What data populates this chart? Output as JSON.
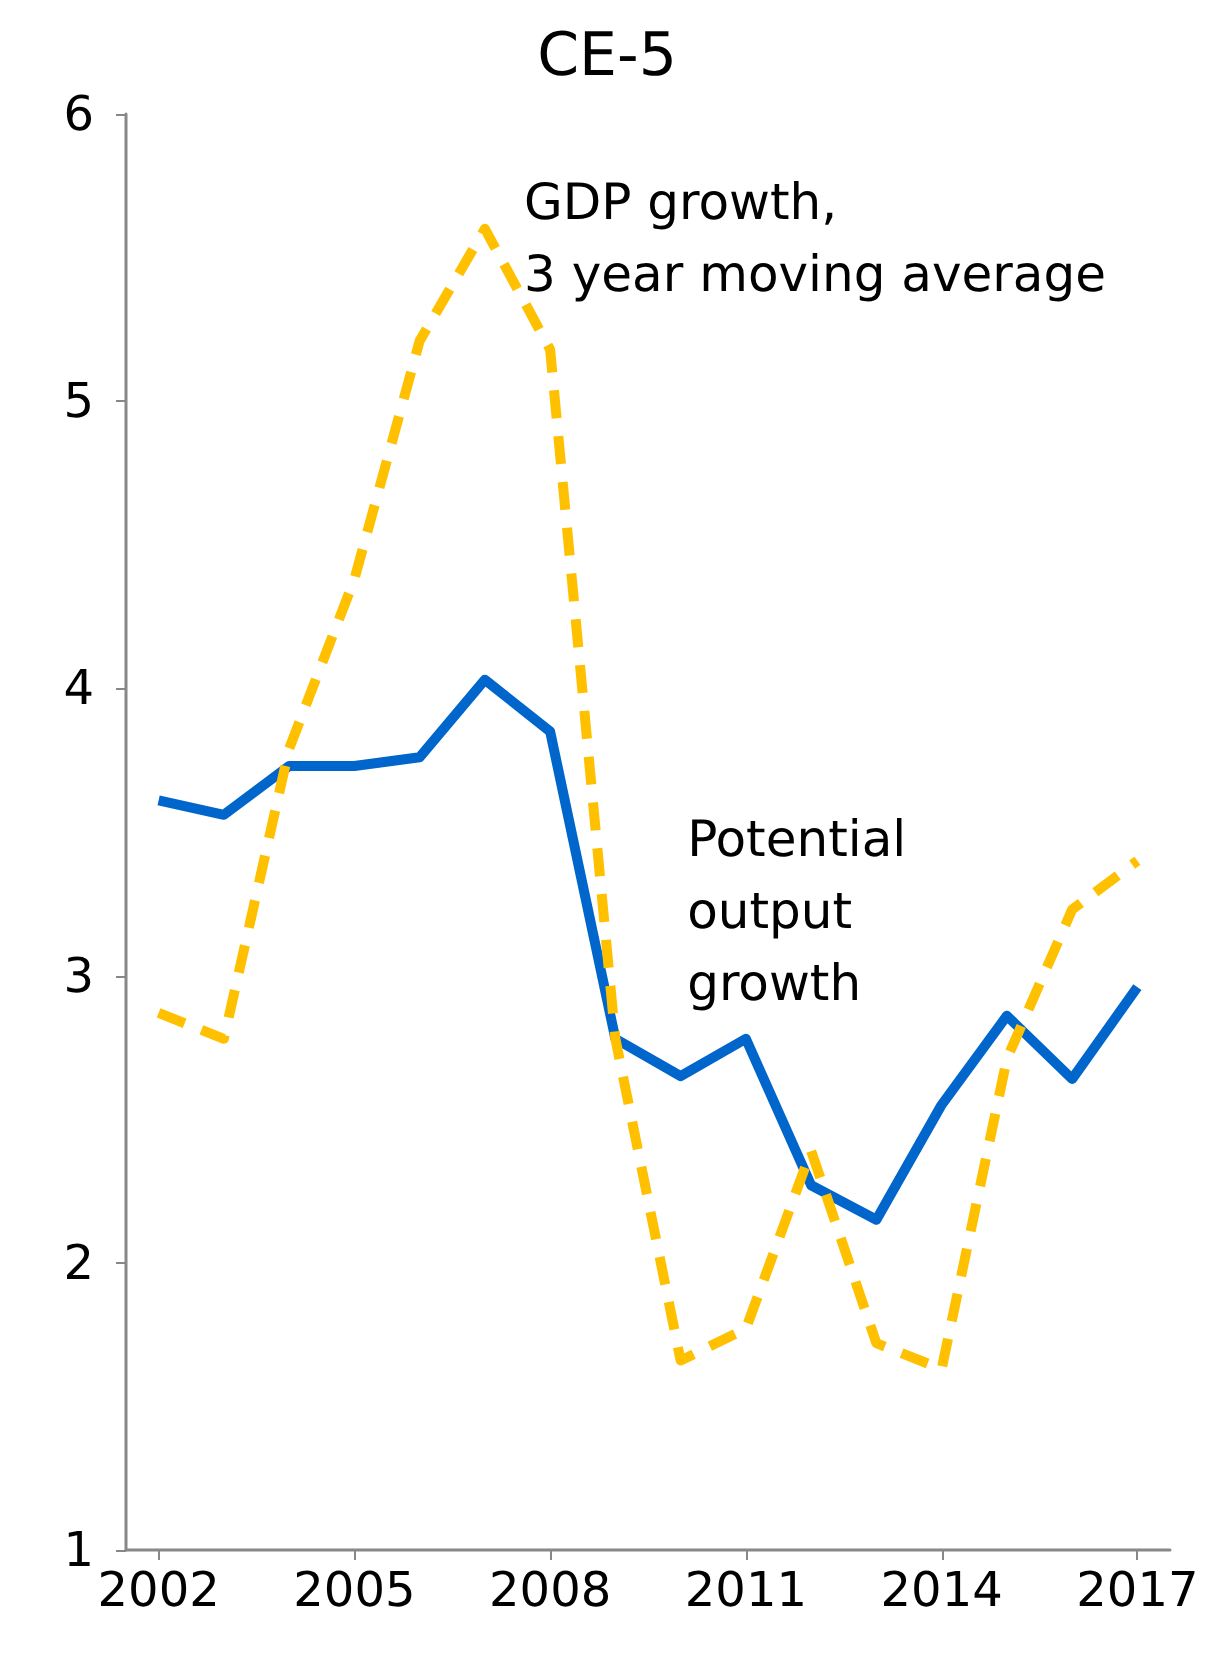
{
  "chart_data": {
    "type": "line",
    "title": "CE-5",
    "x": [
      2002,
      2003,
      2004,
      2005,
      2006,
      2007,
      2008,
      2009,
      2010,
      2011,
      2012,
      2013,
      2014,
      2015,
      2016,
      2017
    ],
    "series": [
      {
        "name": "Potential output growth",
        "color": "#0066cc",
        "line_style": "solid",
        "values": [
          3.61,
          3.56,
          3.73,
          3.73,
          3.76,
          4.03,
          3.85,
          2.78,
          2.65,
          2.78,
          2.27,
          2.15,
          2.55,
          2.86,
          2.64,
          2.96
        ]
      },
      {
        "name": "GDP growth, 3 year moving average",
        "color": "#ffc000",
        "line_style": "dashed",
        "values": [
          2.87,
          2.78,
          3.79,
          4.38,
          5.21,
          5.6,
          5.18,
          2.78,
          1.66,
          1.77,
          2.39,
          1.72,
          1.63,
          2.71,
          3.23,
          3.4
        ]
      }
    ],
    "xlim": [
      2001.5,
      2017.5
    ],
    "xticks": [
      2002,
      2005,
      2008,
      2011,
      2014,
      2017
    ],
    "ylim": [
      1,
      6
    ],
    "yticks": [
      1,
      2,
      3,
      4,
      5,
      6
    ],
    "grid": false,
    "legend": false,
    "marker": "none"
  }
}
